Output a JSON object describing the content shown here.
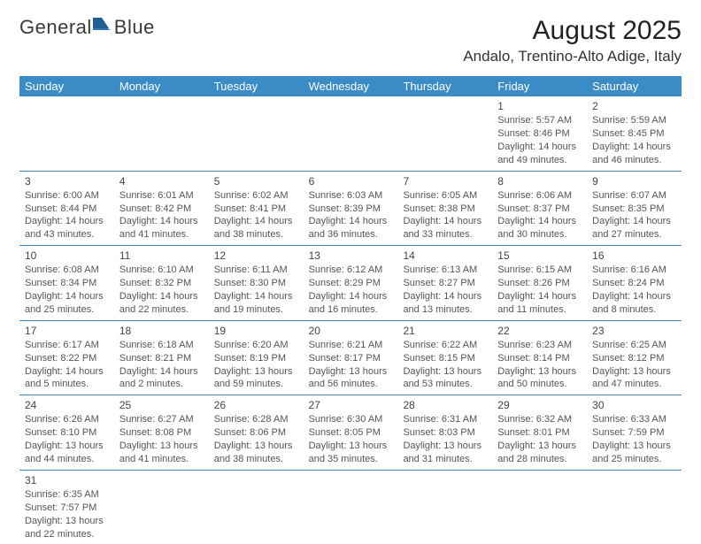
{
  "logo": {
    "text1": "General",
    "text2": "Blue",
    "color_text": "#3a3a3a",
    "color_accent": "#2f77b5"
  },
  "title": "August 2025",
  "location": "Andalo, Trentino-Alto Adige, Italy",
  "colors": {
    "header_bg": "#3b8bc7",
    "header_text": "#ffffff",
    "border": "#3b8bc7",
    "body_text": "#555555",
    "daynum": "#444444"
  },
  "day_headers": [
    "Sunday",
    "Monday",
    "Tuesday",
    "Wednesday",
    "Thursday",
    "Friday",
    "Saturday"
  ],
  "weeks": [
    [
      null,
      null,
      null,
      null,
      null,
      {
        "n": "1",
        "sr": "Sunrise: 5:57 AM",
        "ss": "Sunset: 8:46 PM",
        "d1": "Daylight: 14 hours",
        "d2": "and 49 minutes."
      },
      {
        "n": "2",
        "sr": "Sunrise: 5:59 AM",
        "ss": "Sunset: 8:45 PM",
        "d1": "Daylight: 14 hours",
        "d2": "and 46 minutes."
      }
    ],
    [
      {
        "n": "3",
        "sr": "Sunrise: 6:00 AM",
        "ss": "Sunset: 8:44 PM",
        "d1": "Daylight: 14 hours",
        "d2": "and 43 minutes."
      },
      {
        "n": "4",
        "sr": "Sunrise: 6:01 AM",
        "ss": "Sunset: 8:42 PM",
        "d1": "Daylight: 14 hours",
        "d2": "and 41 minutes."
      },
      {
        "n": "5",
        "sr": "Sunrise: 6:02 AM",
        "ss": "Sunset: 8:41 PM",
        "d1": "Daylight: 14 hours",
        "d2": "and 38 minutes."
      },
      {
        "n": "6",
        "sr": "Sunrise: 6:03 AM",
        "ss": "Sunset: 8:39 PM",
        "d1": "Daylight: 14 hours",
        "d2": "and 36 minutes."
      },
      {
        "n": "7",
        "sr": "Sunrise: 6:05 AM",
        "ss": "Sunset: 8:38 PM",
        "d1": "Daylight: 14 hours",
        "d2": "and 33 minutes."
      },
      {
        "n": "8",
        "sr": "Sunrise: 6:06 AM",
        "ss": "Sunset: 8:37 PM",
        "d1": "Daylight: 14 hours",
        "d2": "and 30 minutes."
      },
      {
        "n": "9",
        "sr": "Sunrise: 6:07 AM",
        "ss": "Sunset: 8:35 PM",
        "d1": "Daylight: 14 hours",
        "d2": "and 27 minutes."
      }
    ],
    [
      {
        "n": "10",
        "sr": "Sunrise: 6:08 AM",
        "ss": "Sunset: 8:34 PM",
        "d1": "Daylight: 14 hours",
        "d2": "and 25 minutes."
      },
      {
        "n": "11",
        "sr": "Sunrise: 6:10 AM",
        "ss": "Sunset: 8:32 PM",
        "d1": "Daylight: 14 hours",
        "d2": "and 22 minutes."
      },
      {
        "n": "12",
        "sr": "Sunrise: 6:11 AM",
        "ss": "Sunset: 8:30 PM",
        "d1": "Daylight: 14 hours",
        "d2": "and 19 minutes."
      },
      {
        "n": "13",
        "sr": "Sunrise: 6:12 AM",
        "ss": "Sunset: 8:29 PM",
        "d1": "Daylight: 14 hours",
        "d2": "and 16 minutes."
      },
      {
        "n": "14",
        "sr": "Sunrise: 6:13 AM",
        "ss": "Sunset: 8:27 PM",
        "d1": "Daylight: 14 hours",
        "d2": "and 13 minutes."
      },
      {
        "n": "15",
        "sr": "Sunrise: 6:15 AM",
        "ss": "Sunset: 8:26 PM",
        "d1": "Daylight: 14 hours",
        "d2": "and 11 minutes."
      },
      {
        "n": "16",
        "sr": "Sunrise: 6:16 AM",
        "ss": "Sunset: 8:24 PM",
        "d1": "Daylight: 14 hours",
        "d2": "and 8 minutes."
      }
    ],
    [
      {
        "n": "17",
        "sr": "Sunrise: 6:17 AM",
        "ss": "Sunset: 8:22 PM",
        "d1": "Daylight: 14 hours",
        "d2": "and 5 minutes."
      },
      {
        "n": "18",
        "sr": "Sunrise: 6:18 AM",
        "ss": "Sunset: 8:21 PM",
        "d1": "Daylight: 14 hours",
        "d2": "and 2 minutes."
      },
      {
        "n": "19",
        "sr": "Sunrise: 6:20 AM",
        "ss": "Sunset: 8:19 PM",
        "d1": "Daylight: 13 hours",
        "d2": "and 59 minutes."
      },
      {
        "n": "20",
        "sr": "Sunrise: 6:21 AM",
        "ss": "Sunset: 8:17 PM",
        "d1": "Daylight: 13 hours",
        "d2": "and 56 minutes."
      },
      {
        "n": "21",
        "sr": "Sunrise: 6:22 AM",
        "ss": "Sunset: 8:15 PM",
        "d1": "Daylight: 13 hours",
        "d2": "and 53 minutes."
      },
      {
        "n": "22",
        "sr": "Sunrise: 6:23 AM",
        "ss": "Sunset: 8:14 PM",
        "d1": "Daylight: 13 hours",
        "d2": "and 50 minutes."
      },
      {
        "n": "23",
        "sr": "Sunrise: 6:25 AM",
        "ss": "Sunset: 8:12 PM",
        "d1": "Daylight: 13 hours",
        "d2": "and 47 minutes."
      }
    ],
    [
      {
        "n": "24",
        "sr": "Sunrise: 6:26 AM",
        "ss": "Sunset: 8:10 PM",
        "d1": "Daylight: 13 hours",
        "d2": "and 44 minutes."
      },
      {
        "n": "25",
        "sr": "Sunrise: 6:27 AM",
        "ss": "Sunset: 8:08 PM",
        "d1": "Daylight: 13 hours",
        "d2": "and 41 minutes."
      },
      {
        "n": "26",
        "sr": "Sunrise: 6:28 AM",
        "ss": "Sunset: 8:06 PM",
        "d1": "Daylight: 13 hours",
        "d2": "and 38 minutes."
      },
      {
        "n": "27",
        "sr": "Sunrise: 6:30 AM",
        "ss": "Sunset: 8:05 PM",
        "d1": "Daylight: 13 hours",
        "d2": "and 35 minutes."
      },
      {
        "n": "28",
        "sr": "Sunrise: 6:31 AM",
        "ss": "Sunset: 8:03 PM",
        "d1": "Daylight: 13 hours",
        "d2": "and 31 minutes."
      },
      {
        "n": "29",
        "sr": "Sunrise: 6:32 AM",
        "ss": "Sunset: 8:01 PM",
        "d1": "Daylight: 13 hours",
        "d2": "and 28 minutes."
      },
      {
        "n": "30",
        "sr": "Sunrise: 6:33 AM",
        "ss": "Sunset: 7:59 PM",
        "d1": "Daylight: 13 hours",
        "d2": "and 25 minutes."
      }
    ],
    [
      {
        "n": "31",
        "sr": "Sunrise: 6:35 AM",
        "ss": "Sunset: 7:57 PM",
        "d1": "Daylight: 13 hours",
        "d2": "and 22 minutes."
      },
      null,
      null,
      null,
      null,
      null,
      null
    ]
  ]
}
